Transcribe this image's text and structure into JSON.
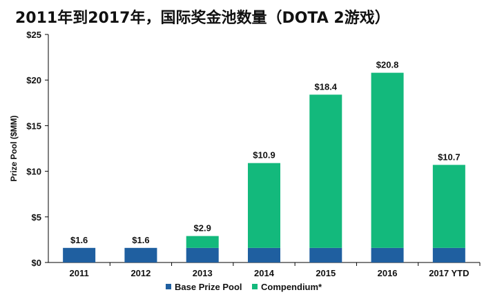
{
  "title": "2011年到2017年，国际奖金池数量（DOTA 2游戏）",
  "chart_data": {
    "type": "bar",
    "stacked": true,
    "categories": [
      "2011",
      "2012",
      "2013",
      "2014",
      "2015",
      "2016",
      "2017 YTD"
    ],
    "series": [
      {
        "name": "Base Prize Pool",
        "color": "#1f5fa0",
        "values": [
          1.6,
          1.6,
          1.6,
          1.6,
          1.6,
          1.6,
          1.6
        ]
      },
      {
        "name": "Compendium*",
        "color": "#13b97c",
        "values": [
          0,
          0,
          1.3,
          9.3,
          16.8,
          19.2,
          9.1
        ]
      }
    ],
    "totals": [
      "$1.6",
      "$1.6",
      "$2.9",
      "$10.9",
      "$18.4",
      "$20.8",
      "$10.7"
    ],
    "ylabel": "Prize Pool ($MM)",
    "yticks": [
      "$0",
      "$5",
      "$10",
      "$15",
      "$20",
      "$25"
    ],
    "ylim": [
      0,
      25
    ],
    "grid": false,
    "legend": "bottom-center"
  }
}
